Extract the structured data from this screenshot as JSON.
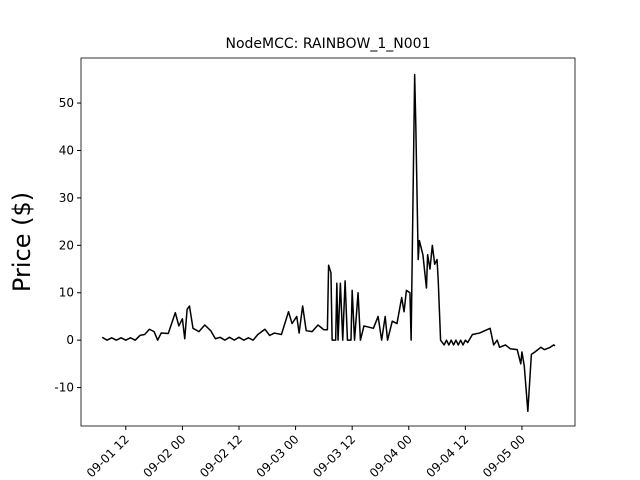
{
  "chart_data": {
    "type": "line",
    "title": "NodeMCC: RAINBOW_1_N001",
    "y_label": "Price ($)",
    "color": "#000000",
    "x": [
      "09-01 07:00",
      "09-01 08:00",
      "09-01 09:00",
      "09-01 10:00",
      "09-01 11:00",
      "09-01 12:00",
      "09-01 13:00",
      "09-01 14:00",
      "09-01 15:00",
      "09-01 16:00",
      "09-01 17:00",
      "09-01 18:00",
      "09-01 18:45",
      "09-01 19:30",
      "09-01 21:00",
      "09-01 22:30",
      "09-01 23:15",
      "09-02 00:00",
      "09-02 00:30",
      "09-02 01:00",
      "09-02 01:30",
      "09-02 02:15",
      "09-02 03:30",
      "09-02 04:45",
      "09-02 06:00",
      "09-02 07:00",
      "09-02 08:00",
      "09-02 09:00",
      "09-02 10:00",
      "09-02 11:00",
      "09-02 12:00",
      "09-02 13:00",
      "09-02 14:00",
      "09-02 15:00",
      "09-02 16:00",
      "09-02 17:30",
      "09-02 18:30",
      "09-02 19:30",
      "09-02 21:00",
      "09-02 22:30",
      "09-02 23:15",
      "09-03 00:15",
      "09-03 00:45",
      "09-03 01:30",
      "09-03 02:15",
      "09-03 03:30",
      "09-03 04:45",
      "09-03 06:00",
      "09-03 06:45",
      "09-03 07:00",
      "09-03 07:30",
      "09-03 07:45",
      "09-03 08:30",
      "09-03 08:45",
      "09-03 09:00",
      "09-03 09:30",
      "09-03 10:00",
      "09-03 10:30",
      "09-03 11:00",
      "09-03 11:45",
      "09-03 12:00",
      "09-03 12:30",
      "09-03 13:15",
      "09-03 13:45",
      "09-03 14:30",
      "09-03 16:30",
      "09-03 17:30",
      "09-03 18:15",
      "09-03 19:00",
      "09-03 19:30",
      "09-03 20:30",
      "09-03 21:30",
      "09-03 22:30",
      "09-03 23:00",
      "09-03 23:30",
      "09-04 00:15",
      "09-04 00:30",
      "09-04 01:15",
      "09-04 01:30",
      "09-04 02:00",
      "09-04 02:15",
      "09-04 03:00",
      "09-04 03:45",
      "09-04 04:00",
      "09-04 04:30",
      "09-04 05:00",
      "09-04 05:30",
      "09-04 06:00",
      "09-04 06:15",
      "09-04 06:45",
      "09-04 07:30",
      "09-04 08:00",
      "09-04 08:30",
      "09-04 09:00",
      "09-04 09:30",
      "09-04 10:00",
      "09-04 10:30",
      "09-04 11:00",
      "09-04 11:30",
      "09-04 12:00",
      "09-04 12:30",
      "09-04 13:30",
      "09-04 15:00",
      "09-04 17:15",
      "09-04 18:00",
      "09-04 18:45",
      "09-04 19:15",
      "09-04 20:30",
      "09-04 21:30",
      "09-04 23:00",
      "09-04 23:45",
      "09-05 00:00",
      "09-05 00:30",
      "09-05 01:15",
      "09-05 02:00",
      "09-05 02:45",
      "09-05 04:00",
      "09-05 04:45",
      "09-05 06:00",
      "09-05 06:45",
      "09-05 07:00"
    ],
    "values": [
      0.6,
      0,
      0.5,
      0,
      0.5,
      0,
      0.5,
      0,
      1.0,
      1.2,
      2.3,
      1.8,
      0,
      1.5,
      1.4,
      5.8,
      3.0,
      4.5,
      0.3,
      6.5,
      7.2,
      2.5,
      1.8,
      3.2,
      2.0,
      0.3,
      0.6,
      0,
      0.6,
      0,
      0.6,
      0,
      0.5,
      0,
      1.2,
      2.3,
      1.0,
      1.5,
      1.2,
      6.0,
      3.5,
      5.0,
      1.5,
      7.2,
      2.0,
      1.8,
      3.2,
      2.2,
      2.2,
      15.8,
      14.2,
      0,
      0,
      12,
      0,
      12,
      0,
      12.5,
      0,
      0,
      10.5,
      0,
      10,
      0,
      3.0,
      2.5,
      5.0,
      0,
      5.0,
      0,
      4.0,
      3.5,
      9.0,
      6,
      10.5,
      10,
      0,
      56,
      45,
      17,
      21,
      18,
      11,
      18,
      15,
      20,
      16,
      17,
      12.5,
      0,
      -1,
      0,
      -1,
      0,
      -1,
      0,
      -1,
      0,
      -1,
      0,
      -0.5,
      1.2,
      1.5,
      2.5,
      -1,
      0,
      -1.5,
      -1.0,
      -1.8,
      -2.0,
      -5,
      -2.5,
      -5.5,
      -15,
      -3,
      -2.5,
      -1.5,
      -2,
      -1.5,
      -1.0,
      -1.2
    ],
    "xlim": [
      "09-01 02:30",
      "09-05 11:15"
    ],
    "ylim": [
      -18.1,
      59.5
    ],
    "xticks": [
      "09-01 12",
      "09-02 00",
      "09-02 12",
      "09-03 00",
      "09-03 12",
      "09-04 00",
      "09-04 12",
      "09-05 00"
    ],
    "yticks": [
      -10,
      0,
      10,
      20,
      30,
      40,
      50
    ]
  }
}
